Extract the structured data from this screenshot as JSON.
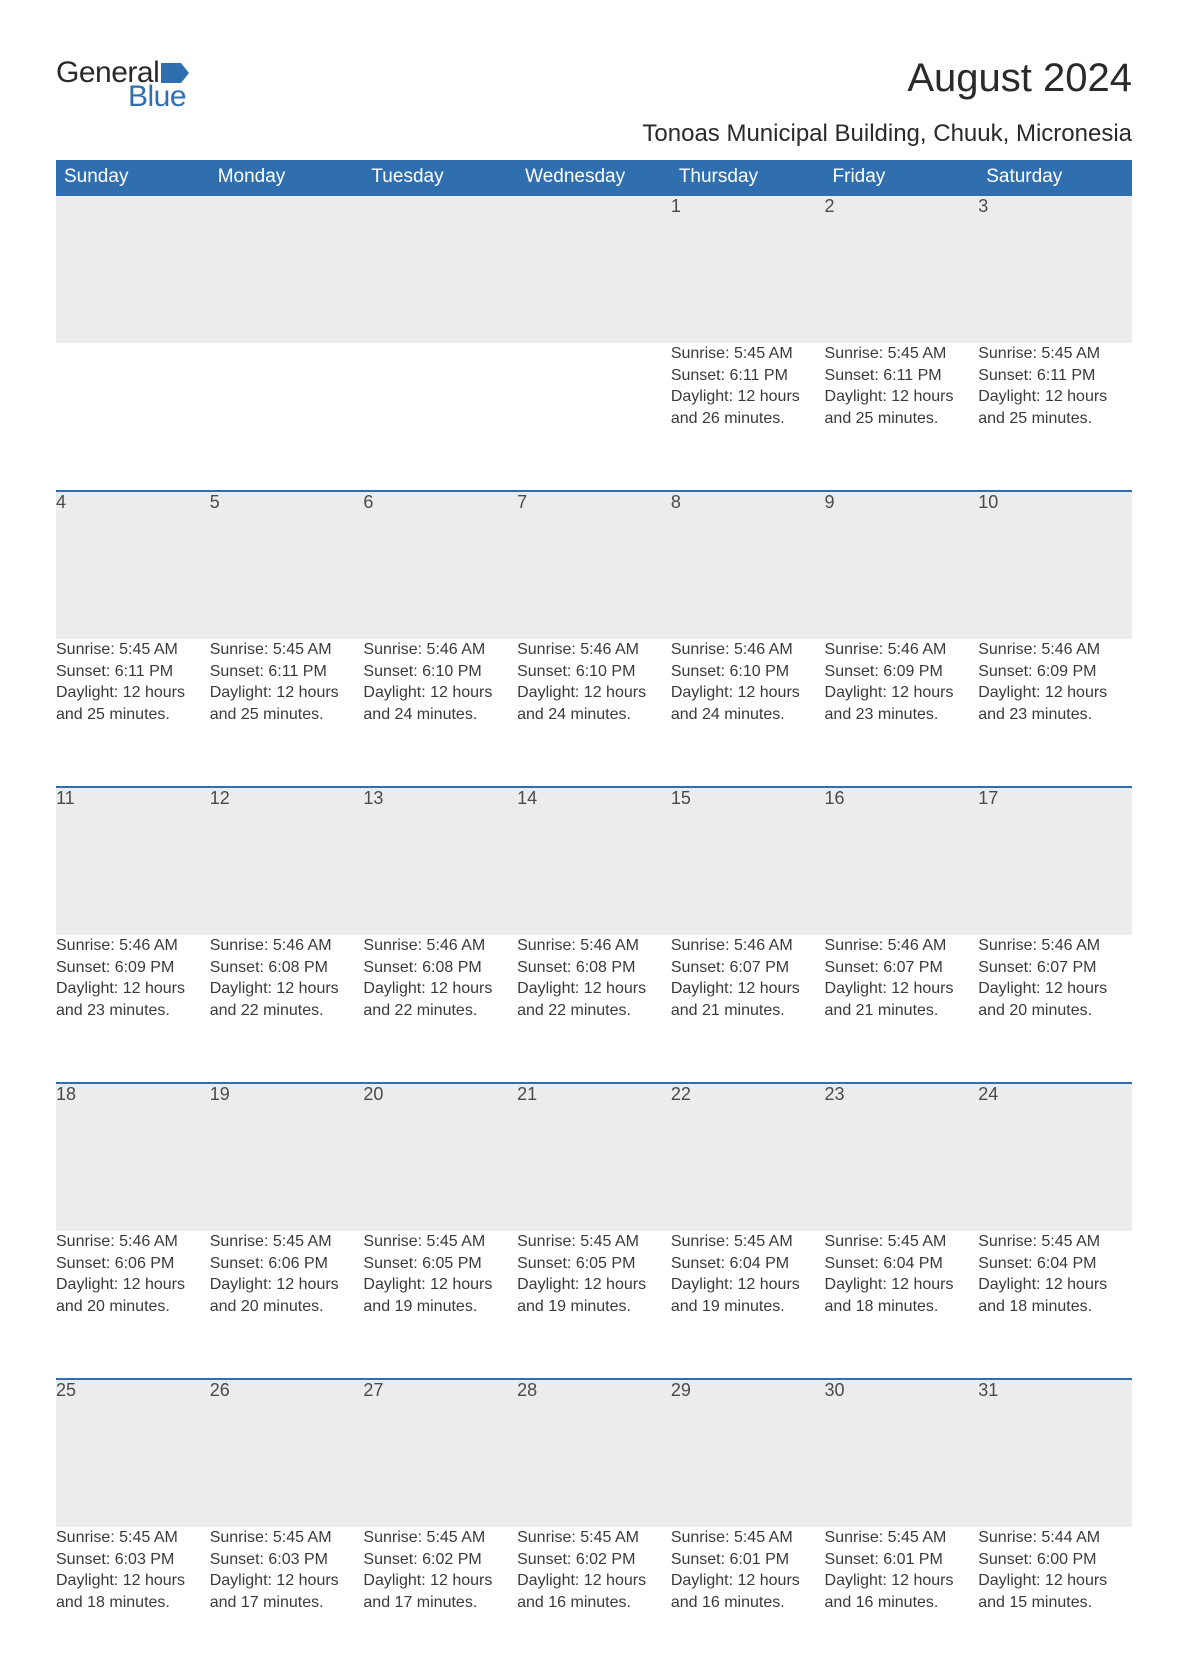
{
  "brand": {
    "part1": "General",
    "part2": "Blue",
    "flag_color": "#2f6fb0"
  },
  "title": "August 2024",
  "subtitle": "Tonoas Municipal Building, Chuuk, Micronesia",
  "colors": {
    "header_bg": "#2f6fb0",
    "header_text": "#ffffff",
    "daynum_bg": "#ececec",
    "row_border": "#2f6fb0",
    "body_text": "#3a3a3a",
    "page_bg": "#ffffff"
  },
  "typography": {
    "title_fontsize": 40,
    "subtitle_fontsize": 24,
    "header_fontsize": 19,
    "daynum_fontsize": 18,
    "cell_fontsize": 16
  },
  "weekdays": [
    "Sunday",
    "Monday",
    "Tuesday",
    "Wednesday",
    "Thursday",
    "Friday",
    "Saturday"
  ],
  "weeks": [
    [
      null,
      null,
      null,
      null,
      {
        "n": "1",
        "sunrise": "Sunrise: 5:45 AM",
        "sunset": "Sunset: 6:11 PM",
        "day1": "Daylight: 12 hours",
        "day2": "and 26 minutes."
      },
      {
        "n": "2",
        "sunrise": "Sunrise: 5:45 AM",
        "sunset": "Sunset: 6:11 PM",
        "day1": "Daylight: 12 hours",
        "day2": "and 25 minutes."
      },
      {
        "n": "3",
        "sunrise": "Sunrise: 5:45 AM",
        "sunset": "Sunset: 6:11 PM",
        "day1": "Daylight: 12 hours",
        "day2": "and 25 minutes."
      }
    ],
    [
      {
        "n": "4",
        "sunrise": "Sunrise: 5:45 AM",
        "sunset": "Sunset: 6:11 PM",
        "day1": "Daylight: 12 hours",
        "day2": "and 25 minutes."
      },
      {
        "n": "5",
        "sunrise": "Sunrise: 5:45 AM",
        "sunset": "Sunset: 6:11 PM",
        "day1": "Daylight: 12 hours",
        "day2": "and 25 minutes."
      },
      {
        "n": "6",
        "sunrise": "Sunrise: 5:46 AM",
        "sunset": "Sunset: 6:10 PM",
        "day1": "Daylight: 12 hours",
        "day2": "and 24 minutes."
      },
      {
        "n": "7",
        "sunrise": "Sunrise: 5:46 AM",
        "sunset": "Sunset: 6:10 PM",
        "day1": "Daylight: 12 hours",
        "day2": "and 24 minutes."
      },
      {
        "n": "8",
        "sunrise": "Sunrise: 5:46 AM",
        "sunset": "Sunset: 6:10 PM",
        "day1": "Daylight: 12 hours",
        "day2": "and 24 minutes."
      },
      {
        "n": "9",
        "sunrise": "Sunrise: 5:46 AM",
        "sunset": "Sunset: 6:09 PM",
        "day1": "Daylight: 12 hours",
        "day2": "and 23 minutes."
      },
      {
        "n": "10",
        "sunrise": "Sunrise: 5:46 AM",
        "sunset": "Sunset: 6:09 PM",
        "day1": "Daylight: 12 hours",
        "day2": "and 23 minutes."
      }
    ],
    [
      {
        "n": "11",
        "sunrise": "Sunrise: 5:46 AM",
        "sunset": "Sunset: 6:09 PM",
        "day1": "Daylight: 12 hours",
        "day2": "and 23 minutes."
      },
      {
        "n": "12",
        "sunrise": "Sunrise: 5:46 AM",
        "sunset": "Sunset: 6:08 PM",
        "day1": "Daylight: 12 hours",
        "day2": "and 22 minutes."
      },
      {
        "n": "13",
        "sunrise": "Sunrise: 5:46 AM",
        "sunset": "Sunset: 6:08 PM",
        "day1": "Daylight: 12 hours",
        "day2": "and 22 minutes."
      },
      {
        "n": "14",
        "sunrise": "Sunrise: 5:46 AM",
        "sunset": "Sunset: 6:08 PM",
        "day1": "Daylight: 12 hours",
        "day2": "and 22 minutes."
      },
      {
        "n": "15",
        "sunrise": "Sunrise: 5:46 AM",
        "sunset": "Sunset: 6:07 PM",
        "day1": "Daylight: 12 hours",
        "day2": "and 21 minutes."
      },
      {
        "n": "16",
        "sunrise": "Sunrise: 5:46 AM",
        "sunset": "Sunset: 6:07 PM",
        "day1": "Daylight: 12 hours",
        "day2": "and 21 minutes."
      },
      {
        "n": "17",
        "sunrise": "Sunrise: 5:46 AM",
        "sunset": "Sunset: 6:07 PM",
        "day1": "Daylight: 12 hours",
        "day2": "and 20 minutes."
      }
    ],
    [
      {
        "n": "18",
        "sunrise": "Sunrise: 5:46 AM",
        "sunset": "Sunset: 6:06 PM",
        "day1": "Daylight: 12 hours",
        "day2": "and 20 minutes."
      },
      {
        "n": "19",
        "sunrise": "Sunrise: 5:45 AM",
        "sunset": "Sunset: 6:06 PM",
        "day1": "Daylight: 12 hours",
        "day2": "and 20 minutes."
      },
      {
        "n": "20",
        "sunrise": "Sunrise: 5:45 AM",
        "sunset": "Sunset: 6:05 PM",
        "day1": "Daylight: 12 hours",
        "day2": "and 19 minutes."
      },
      {
        "n": "21",
        "sunrise": "Sunrise: 5:45 AM",
        "sunset": "Sunset: 6:05 PM",
        "day1": "Daylight: 12 hours",
        "day2": "and 19 minutes."
      },
      {
        "n": "22",
        "sunrise": "Sunrise: 5:45 AM",
        "sunset": "Sunset: 6:04 PM",
        "day1": "Daylight: 12 hours",
        "day2": "and 19 minutes."
      },
      {
        "n": "23",
        "sunrise": "Sunrise: 5:45 AM",
        "sunset": "Sunset: 6:04 PM",
        "day1": "Daylight: 12 hours",
        "day2": "and 18 minutes."
      },
      {
        "n": "24",
        "sunrise": "Sunrise: 5:45 AM",
        "sunset": "Sunset: 6:04 PM",
        "day1": "Daylight: 12 hours",
        "day2": "and 18 minutes."
      }
    ],
    [
      {
        "n": "25",
        "sunrise": "Sunrise: 5:45 AM",
        "sunset": "Sunset: 6:03 PM",
        "day1": "Daylight: 12 hours",
        "day2": "and 18 minutes."
      },
      {
        "n": "26",
        "sunrise": "Sunrise: 5:45 AM",
        "sunset": "Sunset: 6:03 PM",
        "day1": "Daylight: 12 hours",
        "day2": "and 17 minutes."
      },
      {
        "n": "27",
        "sunrise": "Sunrise: 5:45 AM",
        "sunset": "Sunset: 6:02 PM",
        "day1": "Daylight: 12 hours",
        "day2": "and 17 minutes."
      },
      {
        "n": "28",
        "sunrise": "Sunrise: 5:45 AM",
        "sunset": "Sunset: 6:02 PM",
        "day1": "Daylight: 12 hours",
        "day2": "and 16 minutes."
      },
      {
        "n": "29",
        "sunrise": "Sunrise: 5:45 AM",
        "sunset": "Sunset: 6:01 PM",
        "day1": "Daylight: 12 hours",
        "day2": "and 16 minutes."
      },
      {
        "n": "30",
        "sunrise": "Sunrise: 5:45 AM",
        "sunset": "Sunset: 6:01 PM",
        "day1": "Daylight: 12 hours",
        "day2": "and 16 minutes."
      },
      {
        "n": "31",
        "sunrise": "Sunrise: 5:44 AM",
        "sunset": "Sunset: 6:00 PM",
        "day1": "Daylight: 12 hours",
        "day2": "and 15 minutes."
      }
    ]
  ]
}
